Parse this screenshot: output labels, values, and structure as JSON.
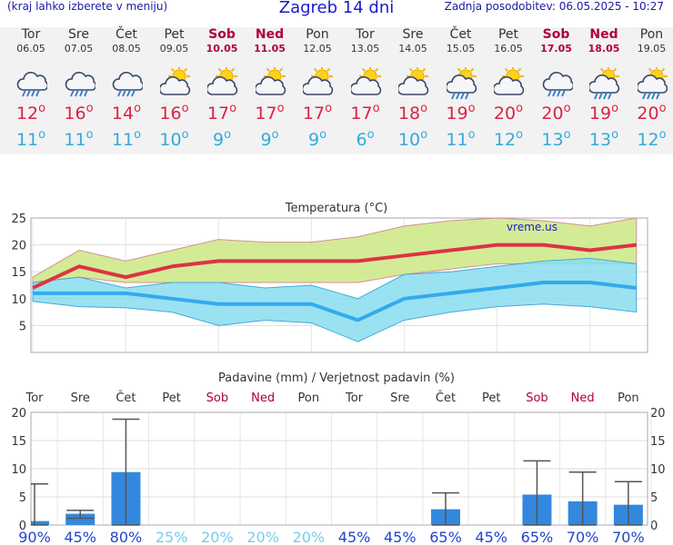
{
  "header": {
    "left_note": "(kraj lahko izberete v meniju)",
    "title": "Zagreb 14 dni",
    "updated": "Zadnja posodobitev: 06.05.2025 - 10:27"
  },
  "days": [
    {
      "name": "Tor",
      "date": "06.05",
      "weekend": false,
      "icon": "cloud-rain-icon",
      "tmax": "12",
      "tmin": "11"
    },
    {
      "name": "Sre",
      "date": "07.05",
      "weekend": false,
      "icon": "cloud-rain-icon",
      "tmax": "16",
      "tmin": "11"
    },
    {
      "name": "Čet",
      "date": "08.05",
      "weekend": false,
      "icon": "cloud-rain-icon",
      "tmax": "14",
      "tmin": "11"
    },
    {
      "name": "Pet",
      "date": "09.05",
      "weekend": false,
      "icon": "sun-cloud-icon",
      "tmax": "16",
      "tmin": "10"
    },
    {
      "name": "Sob",
      "date": "10.05",
      "weekend": true,
      "icon": "sun-cloud-icon",
      "tmax": "17",
      "tmin": "9"
    },
    {
      "name": "Ned",
      "date": "11.05",
      "weekend": true,
      "icon": "sun-cloud-icon",
      "tmax": "17",
      "tmin": "9"
    },
    {
      "name": "Pon",
      "date": "12.05",
      "weekend": false,
      "icon": "sun-cloud-icon",
      "tmax": "17",
      "tmin": "9"
    },
    {
      "name": "Tor",
      "date": "13.05",
      "weekend": false,
      "icon": "sun-cloud-icon",
      "tmax": "17",
      "tmin": "6"
    },
    {
      "name": "Sre",
      "date": "14.05",
      "weekend": false,
      "icon": "sun-cloud-icon",
      "tmax": "18",
      "tmin": "10"
    },
    {
      "name": "Čet",
      "date": "15.05",
      "weekend": false,
      "icon": "sun-cloud-rain-icon",
      "tmax": "19",
      "tmin": "11"
    },
    {
      "name": "Pet",
      "date": "16.05",
      "weekend": false,
      "icon": "sun-cloud-icon",
      "tmax": "20",
      "tmin": "12"
    },
    {
      "name": "Sob",
      "date": "17.05",
      "weekend": true,
      "icon": "cloud-rain-icon",
      "tmax": "20",
      "tmin": "13"
    },
    {
      "name": "Ned",
      "date": "18.05",
      "weekend": true,
      "icon": "sun-cloud-rain-icon",
      "tmax": "19",
      "tmin": "13"
    },
    {
      "name": "Pon",
      "date": "19.05",
      "weekend": false,
      "icon": "sun-cloud-rain-icon",
      "tmax": "20",
      "tmin": "12"
    }
  ],
  "chart_data": [
    {
      "type": "line",
      "title": "Temperatura (°C)",
      "watermark": "vreme.us",
      "ylim": [
        0,
        25
      ],
      "yticks": [
        5,
        10,
        15,
        20,
        25
      ],
      "grid": true,
      "series": [
        {
          "color": "#dd3344",
          "values": [
            12,
            16,
            14,
            16,
            17,
            17,
            17,
            17,
            18,
            19,
            20,
            20,
            19,
            20
          ]
        },
        {
          "color": "#33aaee",
          "values": [
            11,
            11,
            11,
            10,
            9,
            9,
            9,
            6,
            10,
            11,
            12,
            13,
            13,
            12
          ]
        }
      ],
      "max_band": {
        "color": "#cce884",
        "upper": [
          14,
          19,
          17,
          19,
          21,
          20.5,
          20.5,
          21.5,
          23.5,
          24.5,
          25,
          24.5,
          23.5,
          25
        ],
        "lower": [
          13,
          14,
          13,
          13,
          13,
          13,
          13,
          13,
          14.5,
          15.5,
          16.5,
          16.5,
          16.5,
          16.5
        ]
      },
      "min_band": {
        "color": "#88ddee",
        "upper": [
          13,
          14,
          12,
          13,
          13,
          12,
          12.5,
          10,
          14.5,
          15,
          16,
          17,
          17.5,
          16.5
        ],
        "lower": [
          9.5,
          8.5,
          8.3,
          7.5,
          5,
          6,
          5.5,
          2,
          6,
          7.5,
          8.5,
          9,
          8.5,
          7.5
        ]
      }
    },
    {
      "type": "bar",
      "title": "Padavine (mm) / Verjetnost padavin (%)",
      "ylim": [
        0,
        20
      ],
      "yticks": [
        0,
        5,
        10,
        15,
        20
      ],
      "categories": [
        "Tor",
        "Sre",
        "Čet",
        "Pet",
        "Sob",
        "Ned",
        "Pon",
        "Tor",
        "Sre",
        "Čet",
        "Pet",
        "Sob",
        "Ned",
        "Pon"
      ],
      "values": [
        0.7,
        2.0,
        9.4,
        0,
        0,
        0,
        0,
        0,
        0,
        2.8,
        0,
        5.4,
        4.2,
        3.6
      ],
      "error_high": [
        7.3,
        2.6,
        18.8,
        null,
        null,
        null,
        null,
        null,
        null,
        5.7,
        null,
        11.4,
        9.4,
        7.7
      ],
      "error_low": [
        0,
        1.2,
        0,
        null,
        null,
        null,
        null,
        null,
        null,
        0,
        null,
        0,
        0,
        0
      ],
      "probability": [
        "90%",
        "45%",
        "80%",
        "25%",
        "20%",
        "20%",
        "20%",
        "45%",
        "45%",
        "65%",
        "45%",
        "65%",
        "70%",
        "70%"
      ],
      "bar_color": "#3388dd"
    }
  ]
}
